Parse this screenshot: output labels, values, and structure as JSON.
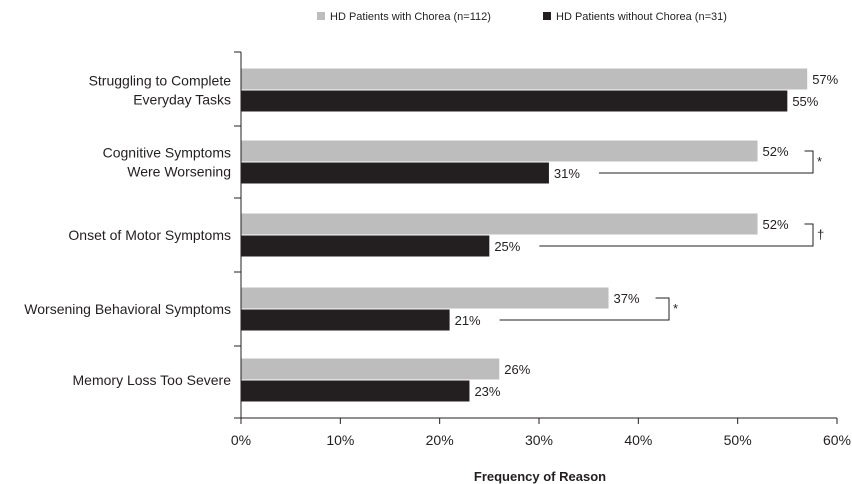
{
  "chart_data": {
    "type": "bar",
    "orientation": "horizontal",
    "categories": [
      [
        "Struggling to Complete",
        "Everyday Tasks"
      ],
      [
        "Cognitive Symptoms",
        "Were Worsening"
      ],
      [
        "Onset of Motor Symptoms"
      ],
      [
        "Worsening Behavioral Symptoms"
      ],
      [
        "Memory Loss Too Severe"
      ]
    ],
    "series": [
      {
        "name": "HD Patients with Chorea (n=112)",
        "color": "#bdbdbd",
        "values": [
          57,
          52,
          52,
          37,
          26
        ],
        "labels": [
          "57%",
          "52%",
          "52%",
          "37%",
          "26%"
        ]
      },
      {
        "name": "HD Patients without Chorea (n=31)",
        "color": "#231f20",
        "values": [
          55,
          31,
          25,
          21,
          23
        ],
        "labels": [
          "55%",
          "31%",
          "25%",
          "21%",
          "23%"
        ]
      }
    ],
    "xlabel": "Frequency of Reason",
    "xlim": [
      0,
      60
    ],
    "xticks": [
      0,
      10,
      20,
      30,
      40,
      50,
      60
    ],
    "xtick_labels": [
      "0%",
      "10%",
      "20%",
      "30%",
      "40%",
      "50%",
      "60%"
    ],
    "legend": "top-right",
    "grid": false,
    "significance": [
      {
        "category_index": 1,
        "symbol": "*"
      },
      {
        "category_index": 2,
        "symbol": "†"
      },
      {
        "category_index": 3,
        "symbol": "*"
      }
    ]
  }
}
